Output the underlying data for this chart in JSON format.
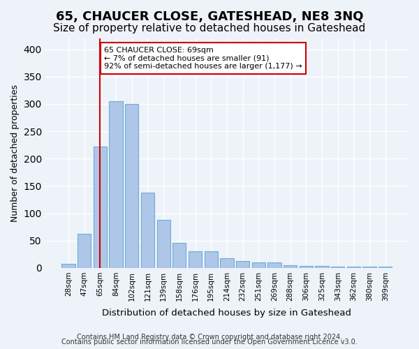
{
  "title": "65, CHAUCER CLOSE, GATESHEAD, NE8 3NQ",
  "subtitle": "Size of property relative to detached houses in Gateshead",
  "xlabel": "Distribution of detached houses by size in Gateshead",
  "ylabel": "Number of detached properties",
  "categories": [
    "28sqm",
    "47sqm",
    "65sqm",
    "84sqm",
    "102sqm",
    "121sqm",
    "139sqm",
    "158sqm",
    "176sqm",
    "195sqm",
    "214sqm",
    "232sqm",
    "251sqm",
    "269sqm",
    "288sqm",
    "306sqm",
    "325sqm",
    "343sqm",
    "362sqm",
    "380sqm",
    "399sqm"
  ],
  "values": [
    8,
    63,
    222,
    305,
    300,
    138,
    88,
    46,
    30,
    30,
    18,
    13,
    10,
    10,
    5,
    4,
    4,
    2,
    3,
    2,
    3
  ],
  "bar_color": "#aec6e8",
  "bar_edge_color": "#6baed6",
  "vline_x": 2,
  "vline_color": "#cc0000",
  "annotation_text": "65 CHAUCER CLOSE: 69sqm\n← 7% of detached houses are smaller (91)\n92% of semi-detached houses are larger (1,177) →",
  "annotation_box_color": "#ffffff",
  "annotation_box_edge": "#cc0000",
  "ylim": [
    0,
    420
  ],
  "footer1": "Contains HM Land Registry data © Crown copyright and database right 2024.",
  "footer2": "Contains public sector information licensed under the Open Government Licence v3.0.",
  "background_color": "#eef2f9",
  "plot_background": "#eef2f9",
  "title_fontsize": 13,
  "subtitle_fontsize": 11
}
